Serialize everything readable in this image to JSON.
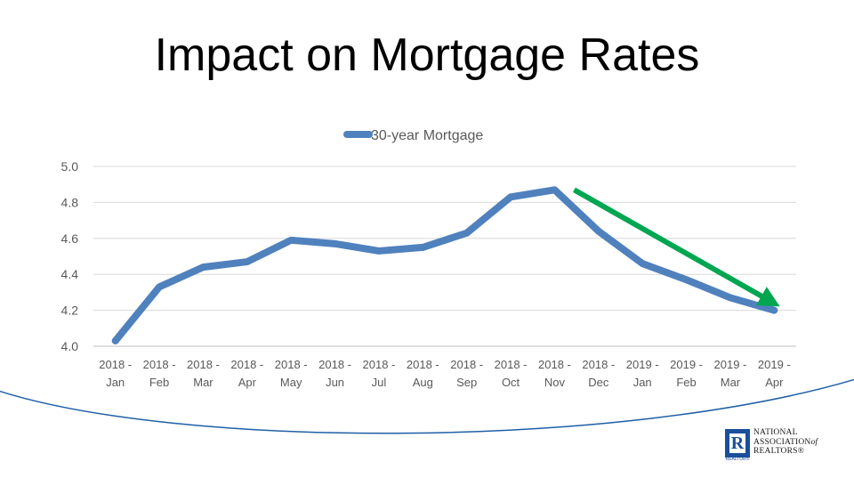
{
  "title": "Impact on Mortgage Rates",
  "chart_data": {
    "type": "line",
    "categories": [
      [
        "2018 -",
        "Jan"
      ],
      [
        "2018 -",
        "Feb"
      ],
      [
        "2018 -",
        "Mar"
      ],
      [
        "2018 -",
        "Apr"
      ],
      [
        "2018 -",
        "May"
      ],
      [
        "2018 -",
        "Jun"
      ],
      [
        "2018 -",
        "Jul"
      ],
      [
        "2018 -",
        "Aug"
      ],
      [
        "2018 -",
        "Sep"
      ],
      [
        "2018 -",
        "Oct"
      ],
      [
        "2018 -",
        "Nov"
      ],
      [
        "2018 -",
        "Dec"
      ],
      [
        "2019 -",
        "Jan"
      ],
      [
        "2019 -",
        "Feb"
      ],
      [
        "2019 -",
        "Mar"
      ],
      [
        "2019 -",
        "Apr"
      ]
    ],
    "series": [
      {
        "name": "30-year Mortgage",
        "color": "#4f81bd",
        "values": [
          4.03,
          4.33,
          4.44,
          4.47,
          4.59,
          4.57,
          4.53,
          4.55,
          4.63,
          4.83,
          4.87,
          4.64,
          4.46,
          4.37,
          4.27,
          4.2
        ]
      }
    ],
    "y_ticks": [
      "4.0",
      "4.2",
      "4.4",
      "4.6",
      "4.8",
      "5.0"
    ],
    "ylim": [
      4.0,
      5.0
    ],
    "grid": true,
    "legend": "top-center",
    "annotation": {
      "type": "trend-arrow",
      "color": "#00a651",
      "from_category": "2018 - Nov",
      "to_category": "2019 - Apr",
      "from_value": 4.87,
      "to_value": 4.25
    }
  },
  "logo": {
    "line1": "NATIONAL",
    "line2": "ASSOCIATION",
    "of": "of",
    "line3": "REALTORS®",
    "mark": "R",
    "mark_sub": "REALTOR®",
    "color": "#1b4f9c"
  }
}
